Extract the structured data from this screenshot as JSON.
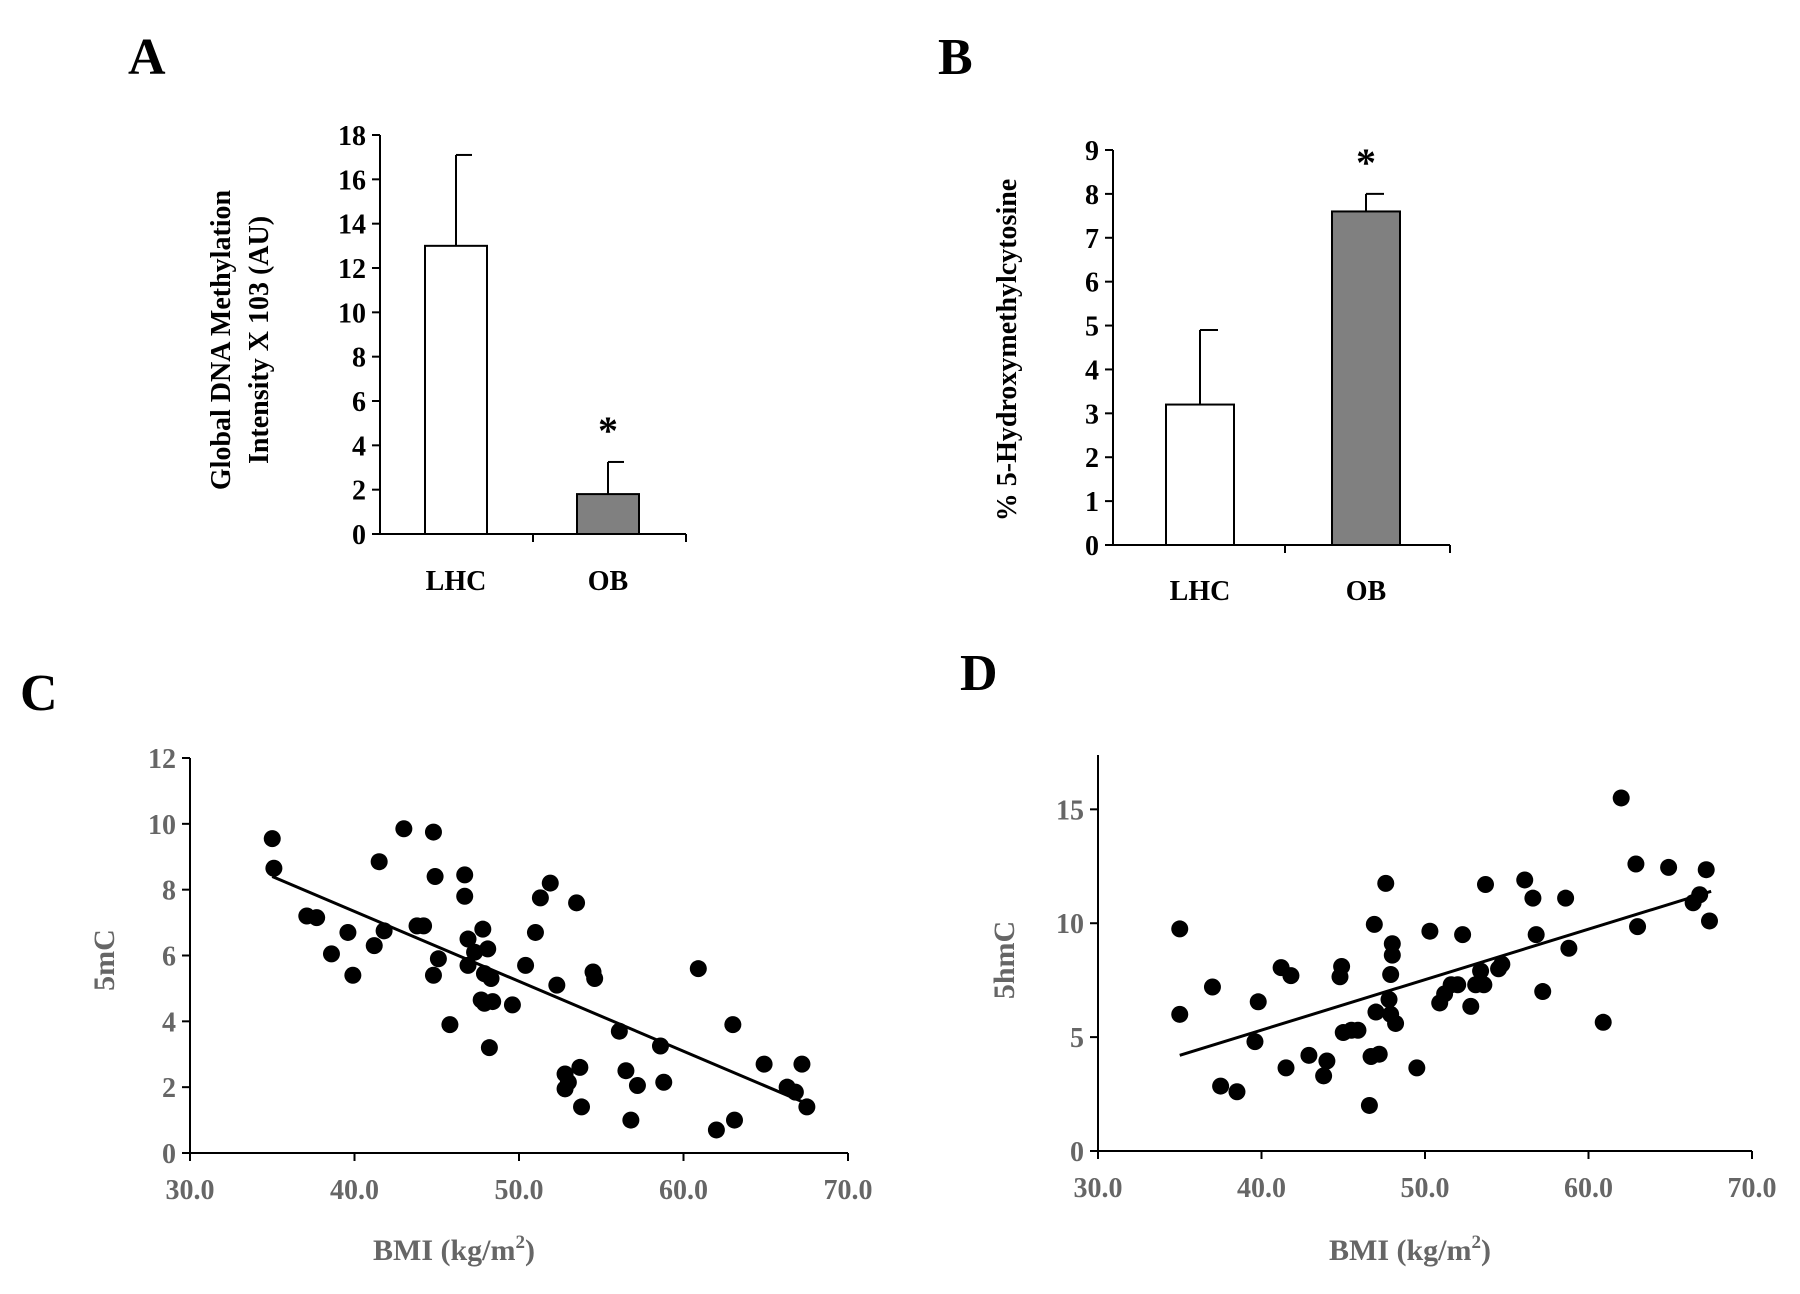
{
  "colors": {
    "bar_lhc": "#ffffff",
    "bar_ob": "#808080",
    "axis_dark": "#000000",
    "axis_gray": "#666666",
    "point": "#000000"
  },
  "chart_data": [
    {
      "panel": "A",
      "type": "bar",
      "categories": [
        "LHC",
        "OB"
      ],
      "values": [
        13,
        1.8
      ],
      "errors": [
        4.1,
        1.45
      ],
      "significance": [
        "",
        "*"
      ],
      "ylabel_line1": "Global DNA Methylation",
      "ylabel_line2": "Intensity X 103 (AU)",
      "ylim": [
        0,
        18
      ],
      "yticks": [
        "0",
        "2",
        "4",
        "6",
        "8",
        "10",
        "12",
        "14",
        "16",
        "18"
      ]
    },
    {
      "panel": "B",
      "type": "bar",
      "categories": [
        "LHC",
        "OB"
      ],
      "values": [
        3.2,
        7.6
      ],
      "errors": [
        1.7,
        0.4
      ],
      "significance": [
        "",
        "*"
      ],
      "ylabel": "% 5-Hydroxymethylcytosine",
      "ylim": [
        0,
        9
      ],
      "yticks": [
        "0",
        "1",
        "2",
        "3",
        "4",
        "5",
        "6",
        "7",
        "8",
        "9"
      ]
    },
    {
      "panel": "C",
      "type": "scatter",
      "xlabel": "BMI (kg/m",
      "xlabel_sup": "2",
      "xlabel_end": ")",
      "ylabel": "5mC",
      "xlim": [
        30,
        70
      ],
      "ylim": [
        0,
        12
      ],
      "xticks": [
        "30.0",
        "40.0",
        "50.0",
        "60.0",
        "70.0"
      ],
      "yticks": [
        "0",
        "2",
        "4",
        "6",
        "8",
        "10",
        "12"
      ],
      "trendline": [
        [
          35,
          8.4
        ],
        [
          67.5,
          1.5
        ]
      ],
      "points": [
        [
          35,
          9.55
        ],
        [
          35.1,
          8.65
        ],
        [
          37.1,
          7.2
        ],
        [
          37.7,
          7.15
        ],
        [
          38.6,
          6.05
        ],
        [
          39.6,
          6.7
        ],
        [
          39.9,
          5.4
        ],
        [
          41.2,
          6.3
        ],
        [
          41.5,
          8.85
        ],
        [
          41.8,
          6.75
        ],
        [
          43,
          9.85
        ],
        [
          43.8,
          6.9
        ],
        [
          44.2,
          6.9
        ],
        [
          44.8,
          9.75
        ],
        [
          44.9,
          8.4
        ],
        [
          44.8,
          5.4
        ],
        [
          45.1,
          5.9
        ],
        [
          45.8,
          3.9
        ],
        [
          46.7,
          8.45
        ],
        [
          46.7,
          7.8
        ],
        [
          46.9,
          6.5
        ],
        [
          46.9,
          5.7
        ],
        [
          47.3,
          6.1
        ],
        [
          47.7,
          4.65
        ],
        [
          47.8,
          6.8
        ],
        [
          47.9,
          5.45
        ],
        [
          48.1,
          6.2
        ],
        [
          47.9,
          4.55
        ],
        [
          48.2,
          3.2
        ],
        [
          48.3,
          5.3
        ],
        [
          48.4,
          4.6
        ],
        [
          49.6,
          4.5
        ],
        [
          50.4,
          5.7
        ],
        [
          51.0,
          6.7
        ],
        [
          51.3,
          7.75
        ],
        [
          51.9,
          8.2
        ],
        [
          52.3,
          5.1
        ],
        [
          52.8,
          2.4
        ],
        [
          52.8,
          1.95
        ],
        [
          53.0,
          2.15
        ],
        [
          53.5,
          7.6
        ],
        [
          53.7,
          2.6
        ],
        [
          53.8,
          1.4
        ],
        [
          54.5,
          5.5
        ],
        [
          54.6,
          5.3
        ],
        [
          56.1,
          3.7
        ],
        [
          56.5,
          2.5
        ],
        [
          56.8,
          1.0
        ],
        [
          57.2,
          2.05
        ],
        [
          58.6,
          3.25
        ],
        [
          58.8,
          2.15
        ],
        [
          60.9,
          5.6
        ],
        [
          62.0,
          0.7
        ],
        [
          63.0,
          3.9
        ],
        [
          63.1,
          1.0
        ],
        [
          64.9,
          2.7
        ],
        [
          66.3,
          2.0
        ],
        [
          66.8,
          1.85
        ],
        [
          67.2,
          2.7
        ],
        [
          67.5,
          1.4
        ]
      ]
    },
    {
      "panel": "D",
      "type": "scatter",
      "xlabel": "BMI (kg/m",
      "xlabel_sup": "2",
      "xlabel_end": ")",
      "ylabel": "5hmC",
      "xlim": [
        30,
        70
      ],
      "ylim": [
        0,
        18
      ],
      "xticks": [
        "30.0",
        "40.0",
        "50.0",
        "60.0",
        "70.0"
      ],
      "yticks": [
        "0",
        "5",
        "10",
        "15"
      ],
      "yticks_values": [
        0,
        5,
        10,
        15
      ],
      "trendline": [
        [
          35,
          4.2
        ],
        [
          67.5,
          11.4
        ]
      ],
      "points": [
        [
          35,
          9.75
        ],
        [
          35.0,
          6.0
        ],
        [
          37.0,
          7.2
        ],
        [
          37.5,
          2.85
        ],
        [
          38.5,
          2.6
        ],
        [
          39.6,
          4.8
        ],
        [
          39.8,
          6.55
        ],
        [
          41.2,
          8.05
        ],
        [
          41.5,
          3.65
        ],
        [
          41.8,
          7.7
        ],
        [
          42.9,
          4.2
        ],
        [
          43.8,
          3.3
        ],
        [
          44.0,
          3.95
        ],
        [
          44.8,
          7.65
        ],
        [
          44.9,
          8.1
        ],
        [
          45.0,
          5.2
        ],
        [
          45.5,
          5.3
        ],
        [
          45.9,
          5.3
        ],
        [
          46.6,
          2.0
        ],
        [
          46.7,
          4.15
        ],
        [
          46.9,
          9.95
        ],
        [
          47.0,
          6.1
        ],
        [
          47.2,
          4.25
        ],
        [
          47.6,
          11.75
        ],
        [
          47.8,
          6.65
        ],
        [
          47.9,
          7.75
        ],
        [
          47.9,
          6.0
        ],
        [
          48.0,
          8.6
        ],
        [
          48.0,
          9.1
        ],
        [
          48.2,
          5.6
        ],
        [
          49.5,
          3.65
        ],
        [
          50.3,
          9.65
        ],
        [
          50.9,
          6.5
        ],
        [
          51.2,
          6.9
        ],
        [
          51.6,
          7.3
        ],
        [
          52.0,
          7.3
        ],
        [
          52.3,
          9.5
        ],
        [
          52.8,
          6.35
        ],
        [
          53.1,
          7.3
        ],
        [
          53.4,
          7.9
        ],
        [
          53.6,
          7.3
        ],
        [
          53.7,
          11.7
        ],
        [
          54.5,
          8.0
        ],
        [
          54.7,
          8.2
        ],
        [
          56.1,
          11.9
        ],
        [
          56.6,
          11.1
        ],
        [
          56.8,
          9.5
        ],
        [
          57.2,
          7.0
        ],
        [
          58.6,
          11.1
        ],
        [
          58.8,
          8.9
        ],
        [
          60.9,
          5.65
        ],
        [
          62.0,
          15.5
        ],
        [
          62.9,
          12.6
        ],
        [
          63.0,
          9.85
        ],
        [
          64.9,
          12.45
        ],
        [
          66.4,
          10.9
        ],
        [
          66.8,
          11.25
        ],
        [
          67.2,
          12.35
        ],
        [
          67.4,
          10.1
        ]
      ]
    }
  ]
}
